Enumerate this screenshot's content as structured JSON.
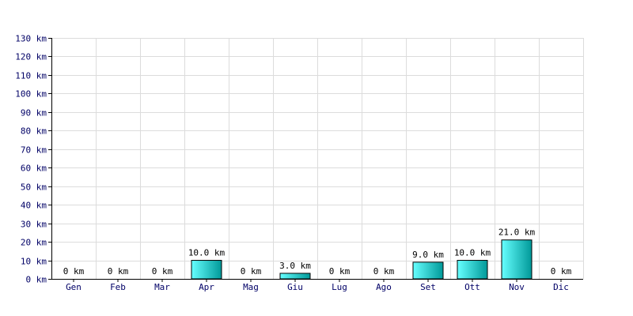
{
  "chart_data": {
    "type": "bar",
    "categories": [
      "Gen",
      "Feb",
      "Mar",
      "Apr",
      "Mag",
      "Giu",
      "Lug",
      "Ago",
      "Set",
      "Ott",
      "Nov",
      "Dic"
    ],
    "values": [
      0,
      0,
      0,
      10,
      0,
      3,
      0,
      0,
      9,
      10,
      21,
      0
    ],
    "value_labels": [
      "0 km",
      "0 km",
      "0 km",
      "10.0 km",
      "0 km",
      "3.0 km",
      "0 km",
      "0 km",
      "9.0 km",
      "10.0 km",
      "21.0 km",
      "0 km"
    ],
    "y_ticks": [
      0,
      10,
      20,
      30,
      40,
      50,
      60,
      70,
      80,
      90,
      100,
      110,
      120,
      130
    ],
    "y_tick_labels": [
      "0 km",
      "10 km",
      "20 km",
      "30 km",
      "40 km",
      "50 km",
      "60 km",
      "70 km",
      "80 km",
      "90 km",
      "100 km",
      "110 km",
      "120 km",
      "130 km"
    ],
    "ylim": [
      0,
      130
    ],
    "grid": true,
    "legend": "none",
    "colors": {
      "bar_light": "#66ffff",
      "bar_dark": "#009999",
      "grid": "#dcdcdc",
      "tick_text": "#000066"
    }
  }
}
